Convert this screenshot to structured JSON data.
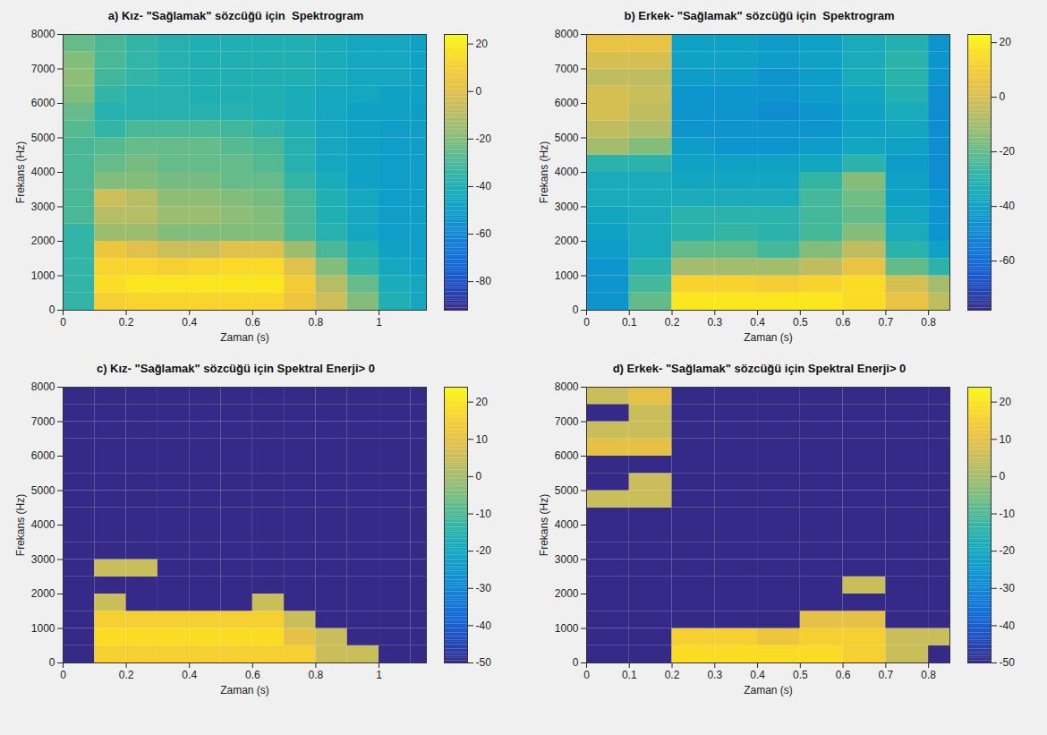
{
  "chart_data": [
    {
      "type": "heatmap",
      "title": "a) Kız- \"Sağlamak\" sözcüğü için  Spektrogram",
      "xlabel": "Zaman (s)",
      "ylabel": "Frekans (Hz)",
      "xlim": [
        0,
        1.15
      ],
      "ylim": [
        0,
        8000
      ],
      "xticks": [
        0,
        0.2,
        0.4,
        0.6,
        0.8,
        1
      ],
      "yticks": [
        0,
        1000,
        2000,
        3000,
        4000,
        5000,
        6000,
        7000,
        8000
      ],
      "x_edges": [
        0,
        0.1,
        0.2,
        0.3,
        0.4,
        0.5,
        0.6,
        0.7,
        0.8,
        0.9,
        1.0,
        1.1,
        1.15
      ],
      "y_edges": [
        0,
        500,
        1000,
        1500,
        2000,
        2500,
        3000,
        3500,
        4000,
        4500,
        5000,
        5500,
        6000,
        6500,
        7000,
        7500,
        8000
      ],
      "z": [
        [
          -35,
          10,
          12,
          12,
          12,
          12,
          12,
          5,
          -5,
          -20,
          -40,
          -45
        ],
        [
          -35,
          15,
          18,
          18,
          18,
          18,
          18,
          8,
          -10,
          -25,
          -42,
          -45
        ],
        [
          -35,
          12,
          12,
          10,
          12,
          14,
          14,
          0,
          -20,
          -35,
          -45,
          -48
        ],
        [
          -35,
          5,
          0,
          -5,
          -5,
          0,
          0,
          -15,
          -30,
          -40,
          -48,
          -50
        ],
        [
          -35,
          -15,
          -15,
          -20,
          -20,
          -20,
          -20,
          -30,
          -38,
          -45,
          -50,
          -50
        ],
        [
          -30,
          -10,
          -10,
          -15,
          -15,
          -18,
          -20,
          -30,
          -40,
          -45,
          -50,
          -50
        ],
        [
          -30,
          -5,
          -10,
          -18,
          -18,
          -20,
          -22,
          -30,
          -40,
          -45,
          -50,
          -50
        ],
        [
          -30,
          -20,
          -20,
          -22,
          -22,
          -25,
          -25,
          -35,
          -42,
          -48,
          -50,
          -50
        ],
        [
          -30,
          -25,
          -22,
          -25,
          -25,
          -25,
          -28,
          -38,
          -45,
          -48,
          -50,
          -50
        ],
        [
          -30,
          -28,
          -25,
          -25,
          -25,
          -28,
          -30,
          -38,
          -45,
          -48,
          -50,
          -50
        ],
        [
          -28,
          -35,
          -30,
          -30,
          -30,
          -32,
          -35,
          -40,
          -45,
          -48,
          -50,
          -50
        ],
        [
          -25,
          -38,
          -38,
          -38,
          -38,
          -38,
          -40,
          -42,
          -45,
          -48,
          -48,
          -50
        ],
        [
          -20,
          -35,
          -38,
          -38,
          -40,
          -40,
          -40,
          -42,
          -45,
          -45,
          -48,
          -48
        ],
        [
          -18,
          -32,
          -35,
          -38,
          -40,
          -40,
          -40,
          -40,
          -42,
          -45,
          -45,
          -48
        ],
        [
          -20,
          -30,
          -35,
          -38,
          -40,
          -40,
          -40,
          -40,
          -42,
          -45,
          -45,
          -48
        ],
        [
          -25,
          -30,
          -35,
          -38,
          -40,
          -40,
          -40,
          -40,
          -42,
          -45,
          -45,
          -48
        ]
      ],
      "colorbar": {
        "range": [
          -92,
          24
        ],
        "ticks": [
          20,
          0,
          -20,
          -40,
          -60,
          -80
        ]
      }
    },
    {
      "type": "heatmap",
      "title": "b) Erkek- \"Sağlamak\" sözcüğü için  Spektrogram",
      "xlabel": "Zaman (s)",
      "ylabel": "Frekans (Hz)",
      "xlim": [
        0,
        0.85
      ],
      "ylim": [
        0,
        8000
      ],
      "xticks": [
        0,
        0.1,
        0.2,
        0.3,
        0.4,
        0.5,
        0.6,
        0.7,
        0.8
      ],
      "yticks": [
        0,
        1000,
        2000,
        3000,
        4000,
        5000,
        6000,
        7000,
        8000
      ],
      "x_edges": [
        0,
        0.1,
        0.2,
        0.3,
        0.4,
        0.5,
        0.6,
        0.7,
        0.8,
        0.85
      ],
      "y_edges": [
        0,
        500,
        1000,
        1500,
        2000,
        2500,
        3000,
        3500,
        4000,
        4500,
        5000,
        5500,
        6000,
        6500,
        7000,
        7500,
        8000
      ],
      "z": [
        [
          -45,
          -20,
          18,
          18,
          18,
          18,
          15,
          5,
          -5
        ],
        [
          -45,
          -25,
          12,
          12,
          10,
          12,
          15,
          0,
          -10
        ],
        [
          -45,
          -30,
          -10,
          -10,
          -10,
          -5,
          5,
          -20,
          -30
        ],
        [
          -42,
          -35,
          -20,
          -20,
          -25,
          -15,
          -5,
          -30,
          -40
        ],
        [
          -40,
          -35,
          -30,
          -28,
          -30,
          -25,
          -15,
          -35,
          -45
        ],
        [
          -38,
          -35,
          -30,
          -30,
          -30,
          -25,
          -20,
          -38,
          -45
        ],
        [
          -35,
          -35,
          -35,
          -35,
          -35,
          -25,
          -18,
          -40,
          -45
        ],
        [
          -35,
          -35,
          -38,
          -38,
          -38,
          -28,
          -15,
          -40,
          -48
        ],
        [
          -30,
          -30,
          -40,
          -40,
          -40,
          -38,
          -30,
          -42,
          -48
        ],
        [
          -10,
          -15,
          -42,
          -45,
          -45,
          -42,
          -38,
          -40,
          -48
        ],
        [
          -5,
          -8,
          -45,
          -45,
          -45,
          -45,
          -40,
          -38,
          -48
        ],
        [
          0,
          -5,
          -45,
          -45,
          -48,
          -45,
          -40,
          -35,
          -48
        ],
        [
          0,
          -3,
          -45,
          -45,
          -45,
          -42,
          -38,
          -32,
          -48
        ],
        [
          -5,
          -5,
          -42,
          -42,
          -45,
          -42,
          -35,
          -30,
          -45
        ],
        [
          0,
          0,
          -40,
          -40,
          -42,
          -40,
          -35,
          -30,
          -45
        ],
        [
          5,
          5,
          -40,
          -40,
          -42,
          -40,
          -35,
          -32,
          -45
        ]
      ],
      "colorbar": {
        "range": [
          -78,
          23
        ],
        "ticks": [
          20,
          0,
          -20,
          -40,
          -60
        ]
      }
    },
    {
      "type": "heatmap",
      "title": "c) Kız- \"Sağlamak\" sözcüğü için Spektral Enerji> 0",
      "xlabel": "Zaman (s)",
      "ylabel": "Frekans (Hz)",
      "xlim": [
        0,
        1.15
      ],
      "ylim": [
        0,
        8000
      ],
      "xticks": [
        0,
        0.2,
        0.4,
        0.6,
        0.8,
        1
      ],
      "yticks": [
        0,
        1000,
        2000,
        3000,
        4000,
        5000,
        6000,
        7000,
        8000
      ],
      "x_edges": [
        0,
        0.1,
        0.2,
        0.3,
        0.4,
        0.5,
        0.6,
        0.7,
        0.8,
        0.9,
        1.0,
        1.1,
        1.15
      ],
      "y_edges": [
        0,
        500,
        1000,
        1500,
        2000,
        2500,
        3000,
        3500,
        4000,
        4500,
        5000,
        5500,
        6000,
        6500,
        7000,
        7500,
        8000
      ],
      "z": [
        [
          -50,
          15,
          15,
          15,
          15,
          15,
          15,
          15,
          5,
          5,
          -50,
          -50
        ],
        [
          -50,
          18,
          18,
          18,
          18,
          18,
          18,
          10,
          5,
          -50,
          -50,
          -50
        ],
        [
          -50,
          15,
          15,
          15,
          15,
          15,
          15,
          5,
          -50,
          -50,
          -50,
          -50
        ],
        [
          -50,
          5,
          -50,
          -50,
          -50,
          -50,
          5,
          -50,
          -50,
          -50,
          -50,
          -50
        ],
        [
          -50,
          -50,
          -50,
          -50,
          -50,
          -50,
          -50,
          -50,
          -50,
          -50,
          -50,
          -50
        ],
        [
          -50,
          5,
          5,
          -50,
          -50,
          -50,
          -50,
          -50,
          -50,
          -50,
          -50,
          -50
        ],
        [
          -50,
          -50,
          -50,
          -50,
          -50,
          -50,
          -50,
          -50,
          -50,
          -50,
          -50,
          -50
        ],
        [
          -50,
          -50,
          -50,
          -50,
          -50,
          -50,
          -50,
          -50,
          -50,
          -50,
          -50,
          -50
        ],
        [
          -50,
          -50,
          -50,
          -50,
          -50,
          -50,
          -50,
          -50,
          -50,
          -50,
          -50,
          -50
        ],
        [
          -50,
          -50,
          -50,
          -50,
          -50,
          -50,
          -50,
          -50,
          -50,
          -50,
          -50,
          -50
        ],
        [
          -50,
          -50,
          -50,
          -50,
          -50,
          -50,
          -50,
          -50,
          -50,
          -50,
          -50,
          -50
        ],
        [
          -50,
          -50,
          -50,
          -50,
          -50,
          -50,
          -50,
          -50,
          -50,
          -50,
          -50,
          -50
        ],
        [
          -50,
          -50,
          -50,
          -50,
          -50,
          -50,
          -50,
          -50,
          -50,
          -50,
          -50,
          -50
        ],
        [
          -50,
          -50,
          -50,
          -50,
          -50,
          -50,
          -50,
          -50,
          -50,
          -50,
          -50,
          -50
        ],
        [
          -50,
          -50,
          -50,
          -50,
          -50,
          -50,
          -50,
          -50,
          -50,
          -50,
          -50,
          -50
        ],
        [
          -50,
          -50,
          -50,
          -50,
          -50,
          -50,
          -50,
          -50,
          -50,
          -50,
          -50,
          -50
        ]
      ],
      "colorbar": {
        "range": [
          -50,
          24
        ],
        "ticks": [
          20,
          10,
          0,
          -10,
          -20,
          -30,
          -40,
          -50
        ]
      }
    },
    {
      "type": "heatmap",
      "title": "d) Erkek- \"Sağlamak\" sözcüğü için Spektral Enerji> 0",
      "xlabel": "Zaman (s)",
      "ylabel": "Frekans (Hz)",
      "xlim": [
        0,
        0.85
      ],
      "ylim": [
        0,
        8000
      ],
      "xticks": [
        0,
        0.1,
        0.2,
        0.3,
        0.4,
        0.5,
        0.6,
        0.7,
        0.8
      ],
      "yticks": [
        0,
        1000,
        2000,
        3000,
        4000,
        5000,
        6000,
        7000,
        8000
      ],
      "x_edges": [
        0,
        0.1,
        0.2,
        0.3,
        0.4,
        0.5,
        0.6,
        0.7,
        0.8,
        0.85
      ],
      "y_edges": [
        0,
        500,
        1000,
        1500,
        2000,
        2500,
        3000,
        3500,
        4000,
        4500,
        5000,
        5500,
        6000,
        6500,
        7000,
        7500,
        8000
      ],
      "z": [
        [
          -50,
          -50,
          18,
          18,
          18,
          18,
          15,
          5,
          -50
        ],
        [
          -50,
          -50,
          15,
          15,
          12,
          15,
          15,
          5,
          5
        ],
        [
          -50,
          -50,
          -50,
          -50,
          -50,
          10,
          10,
          -50,
          -50
        ],
        [
          -50,
          -50,
          -50,
          -50,
          -50,
          -50,
          -50,
          -50,
          -50
        ],
        [
          -50,
          -50,
          -50,
          -50,
          -50,
          -50,
          5,
          -50,
          -50
        ],
        [
          -50,
          -50,
          -50,
          -50,
          -50,
          -50,
          -50,
          -50,
          -50
        ],
        [
          -50,
          -50,
          -50,
          -50,
          -50,
          -50,
          -50,
          -50,
          -50
        ],
        [
          -50,
          -50,
          -50,
          -50,
          -50,
          -50,
          -50,
          -50,
          -50
        ],
        [
          -50,
          -50,
          -50,
          -50,
          -50,
          -50,
          -50,
          -50,
          -50
        ],
        [
          5,
          5,
          -50,
          -50,
          -50,
          -50,
          -50,
          -50,
          -50
        ],
        [
          -50,
          5,
          -50,
          -50,
          -50,
          -50,
          -50,
          -50,
          -50
        ],
        [
          -50,
          -50,
          -50,
          -50,
          -50,
          -50,
          -50,
          -50,
          -50
        ],
        [
          10,
          10,
          -50,
          -50,
          -50,
          -50,
          -50,
          -50,
          -50
        ],
        [
          5,
          5,
          -50,
          -50,
          -50,
          -50,
          -50,
          -50,
          -50
        ],
        [
          -50,
          5,
          -50,
          -50,
          -50,
          -50,
          -50,
          -50,
          -50
        ],
        [
          5,
          10,
          -50,
          -50,
          -50,
          -50,
          -50,
          -50,
          -50
        ]
      ],
      "colorbar": {
        "range": [
          -50,
          24
        ],
        "ticks": [
          20,
          10,
          0,
          -10,
          -20,
          -30,
          -40,
          -50
        ]
      }
    }
  ]
}
